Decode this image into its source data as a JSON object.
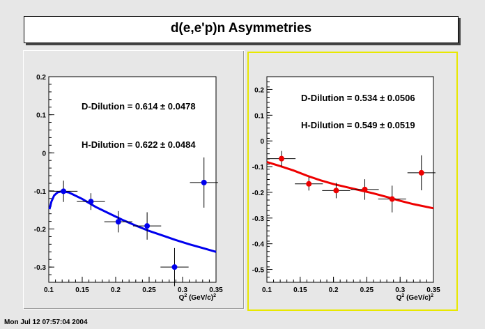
{
  "title": "d(e,e'p)n Asymmetries",
  "timestamp": "Mon Jul 12 07:57:04 2004",
  "colors": {
    "left_series": "#0000ee",
    "right_series": "#ee0000",
    "right_pad_border": "#e8e800"
  },
  "chart_data": [
    {
      "type": "scatter",
      "xlabel": "Q",
      "xlabel_sup": "2",
      "xlabel_unit": "(GeV/c)",
      "xlabel_unit_sup": "2",
      "xlim": [
        0.1,
        0.35
      ],
      "ylim": [
        -0.34,
        0.2
      ],
      "x_ticks": [
        "0.1",
        "0.15",
        "0.2",
        "0.25",
        "0.3",
        "0.35"
      ],
      "y_ticks": [
        "0.2",
        "0.1",
        "0",
        "-0.1",
        "-0.2",
        "-0.3"
      ],
      "annotations": [
        "D-Dilution = 0.614 ± 0.0478",
        "H-Dilution = 0.622 ± 0.0484"
      ],
      "points": [
        {
          "x": 0.122,
          "y": -0.101,
          "xerr": 0.021,
          "yerr": 0.028
        },
        {
          "x": 0.163,
          "y": -0.128,
          "xerr": 0.021,
          "yerr": 0.022
        },
        {
          "x": 0.204,
          "y": -0.181,
          "xerr": 0.021,
          "yerr": 0.028
        },
        {
          "x": 0.247,
          "y": -0.192,
          "xerr": 0.021,
          "yerr": 0.036
        },
        {
          "x": 0.288,
          "y": -0.3,
          "xerr": 0.021,
          "yerr": 0.05
        },
        {
          "x": 0.332,
          "y": -0.078,
          "xerr": 0.021,
          "yerr": 0.066
        }
      ],
      "curve": [
        {
          "x": 0.101,
          "y": -0.148
        },
        {
          "x": 0.104,
          "y": -0.128
        },
        {
          "x": 0.108,
          "y": -0.112
        },
        {
          "x": 0.113,
          "y": -0.104
        },
        {
          "x": 0.12,
          "y": -0.101
        },
        {
          "x": 0.13,
          "y": -0.104
        },
        {
          "x": 0.15,
          "y": -0.121
        },
        {
          "x": 0.17,
          "y": -0.142
        },
        {
          "x": 0.19,
          "y": -0.159
        },
        {
          "x": 0.21,
          "y": -0.176
        },
        {
          "x": 0.23,
          "y": -0.191
        },
        {
          "x": 0.25,
          "y": -0.205
        },
        {
          "x": 0.27,
          "y": -0.217
        },
        {
          "x": 0.29,
          "y": -0.229
        },
        {
          "x": 0.31,
          "y": -0.24
        },
        {
          "x": 0.33,
          "y": -0.25
        },
        {
          "x": 0.35,
          "y": -0.26
        }
      ]
    },
    {
      "type": "scatter",
      "xlabel": "Q",
      "xlabel_sup": "2",
      "xlabel_unit": "(GeV/c)",
      "xlabel_unit_sup": "2",
      "xlim": [
        0.1,
        0.35
      ],
      "ylim": [
        -0.55,
        0.25
      ],
      "x_ticks": [
        "0.1",
        "0.15",
        "0.2",
        "0.25",
        "0.3",
        "0.35"
      ],
      "y_ticks": [
        "0.2",
        "0.1",
        "0",
        "-0.1",
        "-0.2",
        "-0.3",
        "-0.4",
        "-0.5"
      ],
      "annotations": [
        "D-Dilution = 0.534 ± 0.0506",
        "H-Dilution = 0.549 ± 0.0519"
      ],
      "points": [
        {
          "x": 0.122,
          "y": -0.069,
          "xerr": 0.021,
          "yerr": 0.03
        },
        {
          "x": 0.163,
          "y": -0.167,
          "xerr": 0.021,
          "yerr": 0.026
        },
        {
          "x": 0.204,
          "y": -0.193,
          "xerr": 0.021,
          "yerr": 0.03
        },
        {
          "x": 0.247,
          "y": -0.189,
          "xerr": 0.021,
          "yerr": 0.04
        },
        {
          "x": 0.288,
          "y": -0.226,
          "xerr": 0.021,
          "yerr": 0.052
        },
        {
          "x": 0.332,
          "y": -0.124,
          "xerr": 0.021,
          "yerr": 0.068
        }
      ],
      "curve": [
        {
          "x": 0.1,
          "y": -0.082
        },
        {
          "x": 0.12,
          "y": -0.098
        },
        {
          "x": 0.14,
          "y": -0.115
        },
        {
          "x": 0.16,
          "y": -0.135
        },
        {
          "x": 0.18,
          "y": -0.153
        },
        {
          "x": 0.2,
          "y": -0.168
        },
        {
          "x": 0.22,
          "y": -0.18
        },
        {
          "x": 0.24,
          "y": -0.192
        },
        {
          "x": 0.26,
          "y": -0.204
        },
        {
          "x": 0.28,
          "y": -0.218
        },
        {
          "x": 0.3,
          "y": -0.233
        },
        {
          "x": 0.32,
          "y": -0.246
        },
        {
          "x": 0.35,
          "y": -0.262
        }
      ]
    }
  ]
}
